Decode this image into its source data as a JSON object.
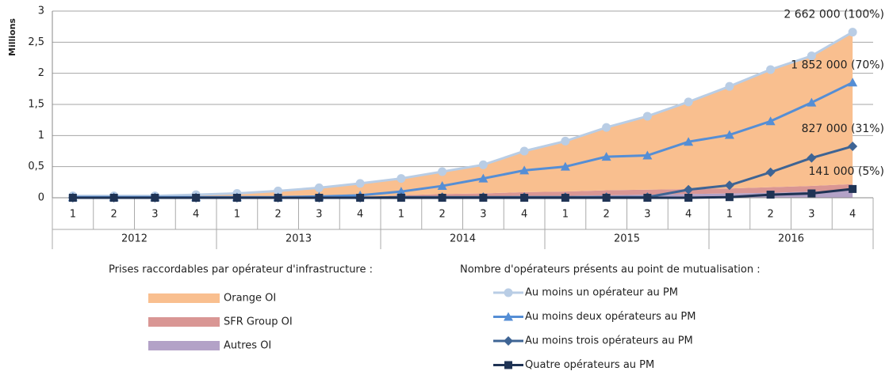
{
  "chart_data": {
    "type": "combo",
    "y_axis_label": "Millions",
    "categories": [
      "1",
      "2",
      "3",
      "4",
      "1",
      "2",
      "3",
      "4",
      "1",
      "2",
      "3",
      "4",
      "1",
      "2",
      "3",
      "4",
      "1",
      "2",
      "3",
      "4"
    ],
    "category_groups": [
      "2012",
      "2013",
      "2014",
      "2015",
      "2016"
    ],
    "ylim": [
      0,
      3
    ],
    "yticks": [
      0,
      {
        "value": 0.5,
        "label": "0,5"
      },
      1,
      {
        "value": 1.5,
        "label": "1,5"
      },
      2,
      {
        "value": 2.5,
        "label": "2,5"
      },
      3
    ],
    "grid": true,
    "area_legend_title": "Prises raccordables par opérateur d'infrastructure :",
    "line_legend_title": "Nombre d'opérateurs présents au point de mutualisation :",
    "series": [
      {
        "name": "Orange OI",
        "type": "area",
        "color": "#f9bf8f",
        "values": [
          0.03,
          0.03,
          0.03,
          0.05,
          0.07,
          0.11,
          0.16,
          0.22,
          0.27,
          0.36,
          0.46,
          0.66,
          0.81,
          1.01,
          1.18,
          1.4,
          1.64,
          1.89,
          2.09,
          2.442
        ]
      },
      {
        "name": "SFR Group OI",
        "type": "area",
        "color": "#d99694",
        "values": [
          0,
          0,
          0,
          0,
          0,
          0,
          0,
          0.01,
          0.03,
          0.04,
          0.05,
          0.06,
          0.07,
          0.08,
          0.08,
          0.08,
          0.08,
          0.09,
          0.09,
          0.1
        ]
      },
      {
        "name": "Autres OI",
        "type": "area",
        "color": "#b3a2c7",
        "values": [
          0,
          0,
          0,
          0,
          0,
          0,
          0,
          0,
          0.01,
          0.02,
          0.02,
          0.03,
          0.03,
          0.04,
          0.05,
          0.06,
          0.07,
          0.08,
          0.1,
          0.12
        ]
      },
      {
        "name": "Au moins un opérateur au PM",
        "type": "line",
        "marker": "circle",
        "color": "#b9cde5",
        "values": [
          0.03,
          0.03,
          0.03,
          0.05,
          0.07,
          0.11,
          0.16,
          0.23,
          0.31,
          0.42,
          0.53,
          0.75,
          0.91,
          1.13,
          1.31,
          1.54,
          1.79,
          2.06,
          2.28,
          2.662
        ],
        "value_labels": [
          null,
          null,
          null,
          null,
          null,
          null,
          null,
          null,
          null,
          null,
          null,
          null,
          null,
          null,
          null,
          null,
          null,
          null,
          null,
          "2 662 000 (100%)"
        ]
      },
      {
        "name": "Au moins deux opérateurs au PM",
        "type": "line",
        "marker": "triangle",
        "color": "#558ed5",
        "values": [
          0.01,
          0.01,
          0.01,
          0.01,
          0.01,
          0.01,
          0.02,
          0.04,
          0.1,
          0.19,
          0.31,
          0.44,
          0.5,
          0.66,
          0.68,
          0.9,
          1.01,
          1.23,
          1.53,
          1.852
        ],
        "value_labels": [
          null,
          null,
          null,
          null,
          null,
          null,
          null,
          null,
          null,
          null,
          null,
          null,
          null,
          null,
          null,
          null,
          null,
          null,
          null,
          "1 852 000 (70%)"
        ]
      },
      {
        "name": "Au moins trois opérateurs au PM",
        "type": "line",
        "marker": "diamond",
        "color": "#3e6494",
        "values": [
          0,
          0,
          0,
          0,
          0,
          0,
          0,
          0,
          0.01,
          0.01,
          0.01,
          0.01,
          0.01,
          0.01,
          0.01,
          0.13,
          0.2,
          0.41,
          0.64,
          0.827
        ],
        "value_labels": [
          null,
          null,
          null,
          null,
          null,
          null,
          null,
          null,
          null,
          null,
          null,
          null,
          null,
          null,
          null,
          null,
          null,
          null,
          null,
          "827 000 (31%)"
        ]
      },
      {
        "name": "Quatre opérateurs au PM",
        "type": "line",
        "marker": "square",
        "color": "#1f3354",
        "values": [
          0,
          0,
          0,
          0,
          0,
          0,
          0,
          0,
          0,
          0,
          0,
          0,
          0,
          0,
          0,
          0,
          0.01,
          0.05,
          0.07,
          0.141
        ],
        "value_labels": [
          null,
          null,
          null,
          null,
          null,
          null,
          null,
          null,
          null,
          null,
          null,
          null,
          null,
          null,
          null,
          null,
          null,
          null,
          null,
          "141 000 (5%)"
        ]
      }
    ]
  }
}
